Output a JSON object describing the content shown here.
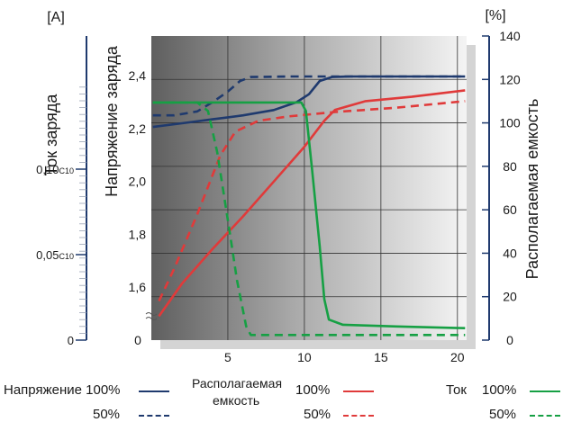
{
  "chart_data": {
    "type": "line",
    "x_ticks": [
      5,
      10,
      15,
      20
    ],
    "xlim": [
      0,
      20.6
    ],
    "left_units": "[A]",
    "left_axis_label": "Ток заряда",
    "left_ticks": [
      {
        "value": 0,
        "main": "0",
        "sub": ""
      },
      {
        "value": 0.05,
        "main": "0,05",
        "sub": "C10"
      },
      {
        "value": 0.1,
        "main": "0,10",
        "sub": "C10"
      }
    ],
    "voltage_axis_label": "Напряжение заряда",
    "voltage_ticks": [
      {
        "value": 1.6,
        "label": "1,6"
      },
      {
        "value": 1.8,
        "label": "1,8"
      },
      {
        "value": 2.0,
        "label": "2,0"
      },
      {
        "value": 2.2,
        "label": "2,2"
      },
      {
        "value": 2.4,
        "label": "2,4"
      }
    ],
    "voltage_zero_label": "0",
    "voltage_range": [
      1.4,
      2.55
    ],
    "right_units": "[%]",
    "right_axis_label": "Располагаемая емкость",
    "right_ticks": [
      0,
      20,
      40,
      60,
      80,
      100,
      120,
      140
    ],
    "right_range": [
      0,
      140
    ],
    "series": [
      {
        "key": "voltage",
        "axis": "voltage",
        "level": "100%",
        "color": "#1f3a6e",
        "dashed": false,
        "points": [
          [
            0.1,
            2.206
          ],
          [
            2,
            2.22
          ],
          [
            4,
            2.235
          ],
          [
            6,
            2.25
          ],
          [
            8,
            2.27
          ],
          [
            9.5,
            2.3
          ],
          [
            10.3,
            2.33
          ],
          [
            11,
            2.38
          ],
          [
            11.8,
            2.395
          ],
          [
            13,
            2.397
          ],
          [
            20.5,
            2.397
          ]
        ]
      },
      {
        "key": "voltage",
        "axis": "voltage",
        "level": "50%",
        "color": "#1f3a6e",
        "dashed": true,
        "points": [
          [
            0.1,
            2.25
          ],
          [
            1.5,
            2.25
          ],
          [
            3,
            2.265
          ],
          [
            4,
            2.3
          ],
          [
            5,
            2.34
          ],
          [
            5.8,
            2.38
          ],
          [
            6.5,
            2.395
          ],
          [
            9,
            2.397
          ],
          [
            20.5,
            2.397
          ]
        ]
      },
      {
        "key": "capacity",
        "axis": "right",
        "level": "100%",
        "color": "#e03a3a",
        "dashed": false,
        "points": [
          [
            0.5,
            11
          ],
          [
            2,
            26
          ],
          [
            4,
            42
          ],
          [
            6,
            57
          ],
          [
            8,
            73
          ],
          [
            10,
            89
          ],
          [
            11.3,
            101
          ],
          [
            12,
            106
          ],
          [
            14,
            110
          ],
          [
            17,
            112
          ],
          [
            20.5,
            115
          ]
        ]
      },
      {
        "key": "capacity",
        "axis": "right",
        "level": "50%",
        "color": "#e03a3a",
        "dashed": true,
        "points": [
          [
            0.5,
            18
          ],
          [
            1.5,
            33
          ],
          [
            3,
            58
          ],
          [
            4.5,
            85
          ],
          [
            5.5,
            96
          ],
          [
            7,
            101
          ],
          [
            9,
            103
          ],
          [
            12,
            105
          ],
          [
            16,
            107
          ],
          [
            20.5,
            110
          ]
        ]
      },
      {
        "key": "current",
        "axis": "left",
        "level": "100%",
        "color": "#16a044",
        "dashed": false,
        "points": [
          [
            0.1,
            0.139
          ],
          [
            6,
            0.139
          ],
          [
            9.8,
            0.139
          ],
          [
            10.1,
            0.134
          ],
          [
            10.5,
            0.1
          ],
          [
            11,
            0.055
          ],
          [
            11.3,
            0.024
          ],
          [
            11.6,
            0.012
          ],
          [
            12.5,
            0.009
          ],
          [
            16,
            0.008
          ],
          [
            20.5,
            0.007
          ]
        ]
      },
      {
        "key": "current",
        "axis": "left",
        "level": "50%",
        "color": "#16a044",
        "dashed": true,
        "points": [
          [
            0.1,
            0.139
          ],
          [
            3,
            0.139
          ],
          [
            3.7,
            0.134
          ],
          [
            4.3,
            0.11
          ],
          [
            5,
            0.07
          ],
          [
            5.6,
            0.035
          ],
          [
            6.2,
            0.008
          ],
          [
            6.5,
            0.003
          ],
          [
            8,
            0.003
          ],
          [
            20.5,
            0.003
          ]
        ]
      }
    ]
  },
  "legend": {
    "voltage_title": "Напряжение",
    "capacity_title_line1": "Располагаемая",
    "capacity_title_line2": "емкость",
    "current_title": "Ток",
    "level_100": "100%",
    "level_50": "50%"
  }
}
